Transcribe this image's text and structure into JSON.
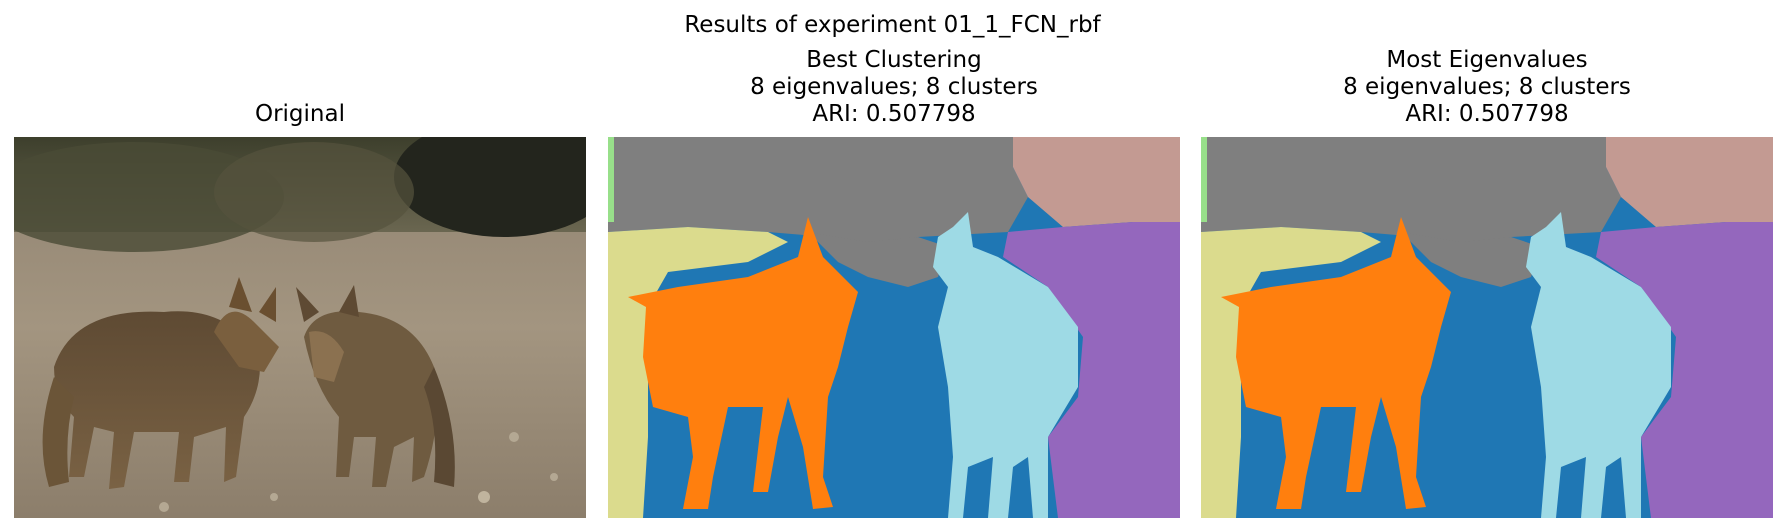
{
  "figure": {
    "suptitle": "Results of experiment 01_1_FCN_rbf"
  },
  "panels": [
    {
      "title_lines": [
        "Original"
      ]
    },
    {
      "title_lines": [
        "Best Clustering",
        "8 eigenvalues; 8 clusters",
        "ARI: 0.507798"
      ]
    },
    {
      "title_lines": [
        "Most Eigenvalues",
        "8 eigenvalues; 8 clusters",
        "ARI: 0.507798"
      ]
    }
  ],
  "cluster_colors": {
    "gray": "#7f7f7f",
    "rose": "#c39a92",
    "olive": "#dbdb8d",
    "orange": "#ff7f0e",
    "blue": "#1f77b4",
    "lightblue": "#9edae5",
    "purple": "#9467bd",
    "green": "#98df8a"
  }
}
